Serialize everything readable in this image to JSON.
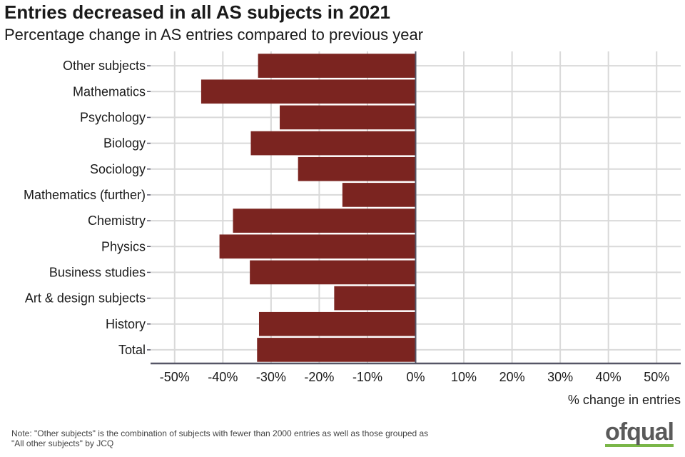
{
  "colors": {
    "bar": "#7b2420",
    "grid": "#d9d9d9",
    "axis": "#555566",
    "text": "#1a1a1a",
    "logo_text": "#5a5a5a",
    "logo_accent": "#7ab648"
  },
  "chart_data": {
    "type": "bar",
    "orientation": "horizontal",
    "title": "Entries decreased in all AS subjects in 2021",
    "subtitle": "Percentage change in AS entries compared to previous year",
    "xlabel": "% change in entries",
    "ylabel": "",
    "xlim": [
      -55,
      55
    ],
    "xticks": [
      -50,
      -40,
      -30,
      -20,
      -10,
      0,
      10,
      20,
      30,
      40,
      50
    ],
    "xtick_labels": [
      "-50%",
      "-40%",
      "-30%",
      "-20%",
      "-10%",
      "0%",
      "10%",
      "20%",
      "30%",
      "40%",
      "50%"
    ],
    "grid": true,
    "categories": [
      "Other subjects",
      "Mathematics",
      "Psychology",
      "Biology",
      "Sociology",
      "Mathematics (further)",
      "Chemistry",
      "Physics",
      "Business studies",
      "Art & design subjects",
      "History",
      "Total"
    ],
    "values": [
      -32.7,
      -44.5,
      -28.2,
      -34.2,
      -24.4,
      -15.2,
      -37.9,
      -40.7,
      -34.4,
      -16.9,
      -32.5,
      -32.9
    ]
  },
  "note": {
    "line1": "Note: \"Other subjects\" is the combination of subjects with fewer than 2000 entries as well as those grouped as",
    "line2": "\"All other subjects\" by JCQ"
  },
  "logo": {
    "text": "ofqual"
  }
}
